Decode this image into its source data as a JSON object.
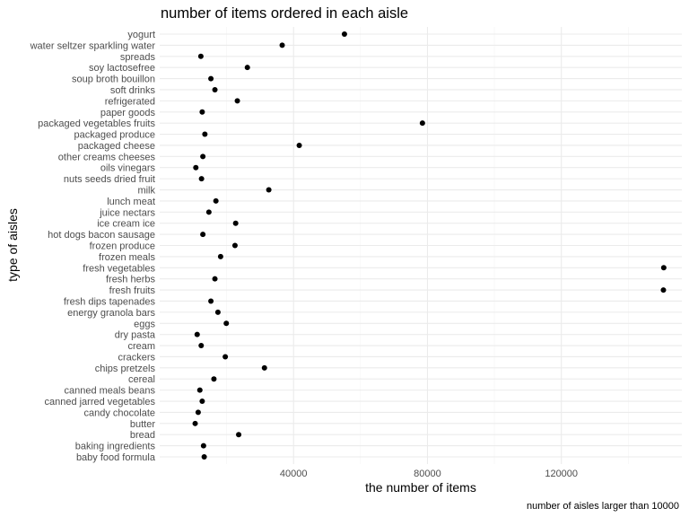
{
  "chart_data": {
    "type": "scatter",
    "title": "number of items ordered in each aisle",
    "xlabel": "the number of items",
    "ylabel": "type of aisles",
    "caption": "number of aisles larger than 10000",
    "xlim": [
      0,
      156000
    ],
    "x_ticks": [
      40000,
      80000,
      120000
    ],
    "x_tick_labels": [
      "40000",
      "80000",
      "120000"
    ],
    "grid": true,
    "point_color": "#000000",
    "categories": [
      "baby food formula",
      "baking ingredients",
      "bread",
      "butter",
      "candy chocolate",
      "canned jarred vegetables",
      "canned meals beans",
      "cereal",
      "chips pretzels",
      "crackers",
      "cream",
      "dry pasta",
      "eggs",
      "energy granola bars",
      "fresh dips tapenades",
      "fresh fruits",
      "fresh herbs",
      "fresh vegetables",
      "frozen meals",
      "frozen produce",
      "hot dogs bacon sausage",
      "ice cream ice",
      "juice nectars",
      "lunch meat",
      "milk",
      "nuts seeds dried fruit",
      "oils vinegars",
      "other creams cheeses",
      "packaged cheese",
      "packaged produce",
      "packaged vegetables fruits",
      "paper goods",
      "refrigerated",
      "soft drinks",
      "soup broth bouillon",
      "soy lactosefree",
      "spreads",
      "water seltzer sparkling water",
      "yogurt"
    ],
    "values": [
      13300,
      13100,
      23600,
      10600,
      11500,
      12700,
      12000,
      16200,
      31300,
      19600,
      12400,
      11200,
      19900,
      17400,
      15300,
      150500,
      16500,
      150600,
      18200,
      22500,
      12900,
      22700,
      14700,
      16800,
      32600,
      12500,
      10800,
      12900,
      41700,
      13500,
      78500,
      12700,
      23200,
      16500,
      15300,
      26200,
      12300,
      36600,
      55200
    ]
  }
}
